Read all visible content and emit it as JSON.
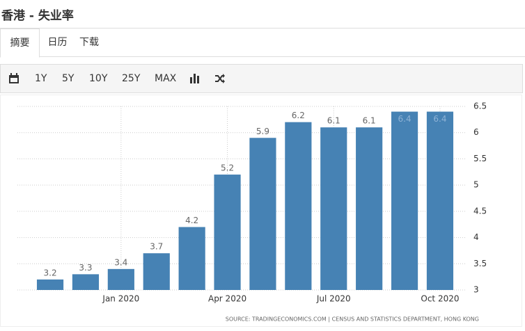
{
  "header": {
    "title": "香港 - 失业率"
  },
  "tabs": [
    "摘要",
    "日历",
    "下载"
  ],
  "toolbar": [
    "1Y",
    "5Y",
    "10Y",
    "25Y",
    "MAX"
  ],
  "chart_data": {
    "type": "bar",
    "categories": [
      null,
      null,
      "Jan 2020",
      null,
      null,
      "Apr 2020",
      null,
      null,
      "Jul 2020",
      null,
      null,
      "Oct 2020"
    ],
    "values": [
      3.2,
      3.3,
      3.4,
      3.7,
      4.2,
      5.2,
      5.9,
      6.2,
      6.1,
      6.1,
      6.4,
      6.4
    ],
    "color": "#4682b4",
    "ylim": [
      3,
      6.5
    ],
    "yticks": [
      3,
      3.5,
      4,
      4.5,
      5,
      5.5,
      6,
      6.5
    ],
    "grid": true,
    "source": "SOURCE: TRADINGECONOMICS.COM | CENSUS AND STATISTICS DEPARTMENT, HONG KONG"
  }
}
